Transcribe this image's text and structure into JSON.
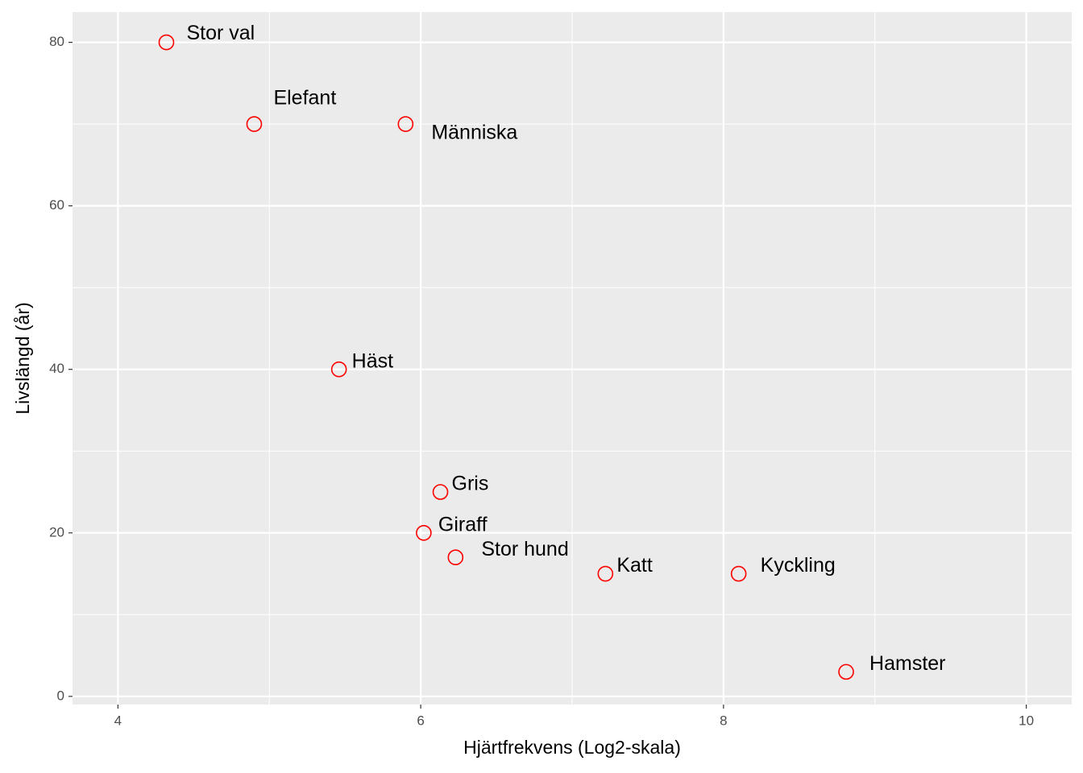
{
  "chart_data": {
    "type": "scatter",
    "x_label": "Hjärtfrekvens (Log2-skala)",
    "y_label": "Livslängd (år)",
    "labels": [
      "Stor val",
      "Elefant",
      "Människa",
      "Häst",
      "Gris",
      "Giraff",
      "Stor hund",
      "Katt",
      "Kyckling",
      "Hamster"
    ],
    "x": [
      4.32,
      4.9,
      5.9,
      5.46,
      6.13,
      6.02,
      6.23,
      7.22,
      8.1,
      8.81
    ],
    "y": [
      80,
      70,
      70,
      40,
      25,
      20,
      17,
      15,
      15,
      3
    ],
    "color": "#ff0000",
    "xlim": [
      3.7,
      10.3
    ],
    "xticks": [
      4,
      6,
      8,
      10
    ],
    "ylim": [
      -1,
      83.7
    ],
    "yticks": [
      0,
      20,
      40,
      60,
      80
    ],
    "grid": true
  }
}
